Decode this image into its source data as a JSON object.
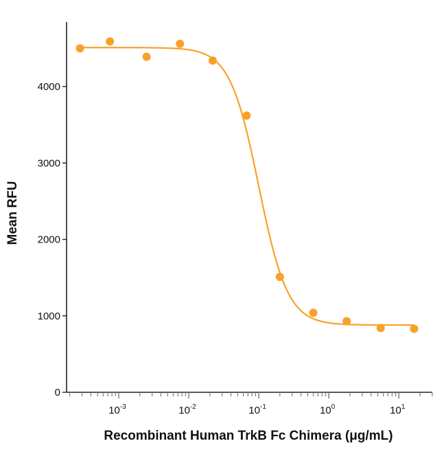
{
  "chart_data": {
    "type": "scatter",
    "title": "",
    "xlabel": "Recombinant Human TrkB Fc Chimera (μg/mL)",
    "ylabel": "Mean RFU",
    "xscale": "log",
    "xlim": [
      0.00018,
      30
    ],
    "ylim": [
      0,
      4800
    ],
    "x_ticks": [
      {
        "value": 0.001,
        "base": "10",
        "exp": "-3"
      },
      {
        "value": 0.01,
        "base": "10",
        "exp": "-2"
      },
      {
        "value": 0.1,
        "base": "10",
        "exp": "-1"
      },
      {
        "value": 1,
        "base": "10",
        "exp": "0"
      },
      {
        "value": 10,
        "base": "10",
        "exp": "1"
      }
    ],
    "y_ticks": [
      {
        "value": 0,
        "label": "0"
      },
      {
        "value": 1000,
        "label": "1000"
      },
      {
        "value": 2000,
        "label": "2000"
      },
      {
        "value": 3000,
        "label": "3000"
      },
      {
        "value": 4000,
        "label": "4000"
      }
    ],
    "series": [
      {
        "name": "Mean RFU",
        "points": [
          {
            "x": 0.00028,
            "y": 4500
          },
          {
            "x": 0.00075,
            "y": 4590
          },
          {
            "x": 0.0025,
            "y": 4390
          },
          {
            "x": 0.0075,
            "y": 4560
          },
          {
            "x": 0.022,
            "y": 4340
          },
          {
            "x": 0.067,
            "y": 3620
          },
          {
            "x": 0.2,
            "y": 1510
          },
          {
            "x": 0.6,
            "y": 1040
          },
          {
            "x": 1.8,
            "y": 930
          },
          {
            "x": 5.5,
            "y": 840
          },
          {
            "x": 16.5,
            "y": 830
          }
        ]
      }
    ],
    "fit_curve": {
      "model": "4PL",
      "top": 4510,
      "bottom": 880,
      "ec50": 0.1,
      "hill": 2.1
    },
    "grid": false,
    "colors": {
      "series": "#F7A12A",
      "axis": "#222222",
      "text": "#111111"
    }
  }
}
